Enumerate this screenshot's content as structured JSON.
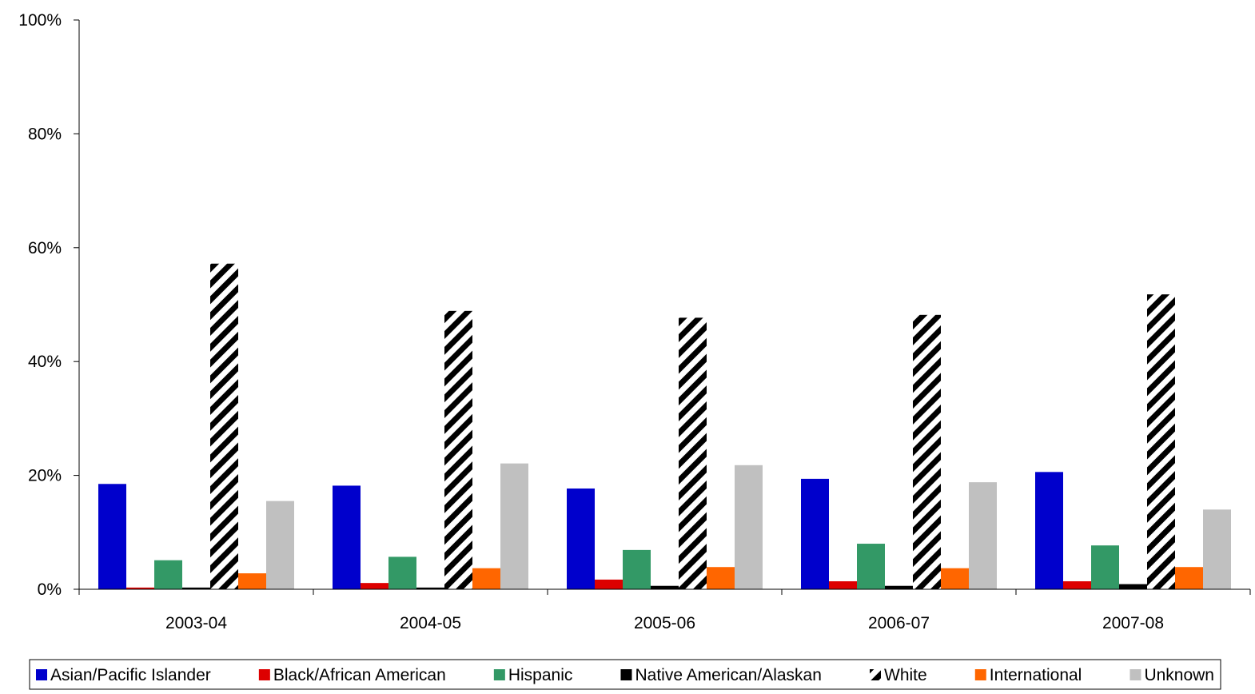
{
  "chart_data": {
    "type": "bar",
    "title": "",
    "xlabel": "",
    "ylabel": "",
    "categories": [
      "2003-04",
      "2004-05",
      "2005-06",
      "2006-07",
      "2007-08"
    ],
    "ylim": [
      0,
      100
    ],
    "yticks": [
      0,
      20,
      40,
      60,
      80,
      100
    ],
    "ytick_labels": [
      "0%",
      "20%",
      "40%",
      "60%",
      "80%",
      "100%"
    ],
    "grid": false,
    "legend_position": "bottom",
    "series": [
      {
        "name": "Asian/Pacific Islander",
        "color": "#0000CC",
        "pattern": "solid",
        "values": [
          18.5,
          18.2,
          17.7,
          19.4,
          20.6
        ]
      },
      {
        "name": "Black/African American",
        "color": "#DD0000",
        "pattern": "solid",
        "values": [
          0.3,
          1.1,
          1.7,
          1.4,
          1.4
        ]
      },
      {
        "name": "Hispanic",
        "color": "#339966",
        "pattern": "solid",
        "values": [
          5.1,
          5.7,
          6.9,
          8.0,
          7.7
        ]
      },
      {
        "name": "Native American/Alaskan",
        "color": "#000000",
        "pattern": "solid",
        "values": [
          0.3,
          0.3,
          0.6,
          0.6,
          0.9
        ]
      },
      {
        "name": "White",
        "color": "#000000",
        "pattern": "diagonal-stripes",
        "values": [
          57.2,
          48.9,
          47.7,
          48.2,
          51.8
        ]
      },
      {
        "name": "International",
        "color": "#FF6600",
        "pattern": "solid",
        "values": [
          2.8,
          3.7,
          3.9,
          3.7,
          3.9
        ]
      },
      {
        "name": "Unknown",
        "color": "#C0C0C0",
        "pattern": "solid",
        "values": [
          15.5,
          22.1,
          21.8,
          18.8,
          14.0
        ]
      }
    ]
  }
}
